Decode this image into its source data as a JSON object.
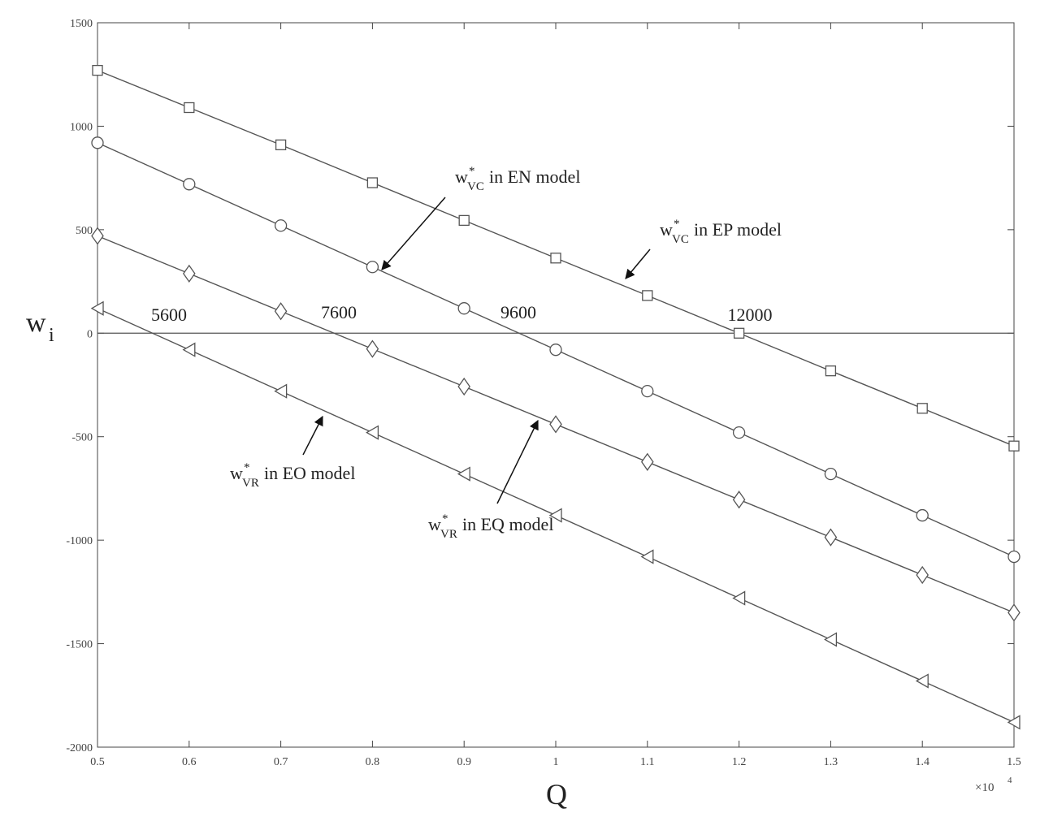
{
  "chart_data": {
    "type": "line",
    "x_label": "Q",
    "y_label": {
      "base": "w",
      "sub": "i"
    },
    "x_multiplier": {
      "base": "×10",
      "exponent": "4"
    },
    "x": [
      0.5,
      0.6,
      0.7,
      0.8,
      0.9,
      1,
      1.1,
      1.2,
      1.3,
      1.4,
      1.5
    ],
    "xlim": [
      0.5,
      1.5
    ],
    "xticks": [
      0.5,
      0.6,
      0.7,
      0.8,
      0.9,
      1,
      1.1,
      1.2,
      1.3,
      1.4,
      1.5
    ],
    "ylim": [
      -2000,
      1500
    ],
    "yticks": [
      -2000,
      -1500,
      -1000,
      -500,
      0,
      500,
      1000,
      1500
    ],
    "hline": 0,
    "series": [
      {
        "marker": "square",
        "color": "#555555",
        "values": [
          1270,
          1090,
          910,
          727,
          545,
          363,
          182,
          0,
          -182,
          -363,
          -545
        ]
      },
      {
        "marker": "circle",
        "color": "#555555",
        "values": [
          920,
          720,
          520,
          320,
          120,
          -80,
          -280,
          -480,
          -680,
          -880,
          -1080
        ]
      },
      {
        "marker": "diamond",
        "color": "#555555",
        "values": [
          470,
          288,
          106,
          -76,
          -258,
          -440,
          -622,
          -804,
          -986,
          -1168,
          -1350
        ]
      },
      {
        "marker": "triangle-left",
        "color": "#555555",
        "values": [
          120,
          -80,
          -280,
          -480,
          -680,
          -880,
          -1080,
          -1280,
          -1480,
          -1680,
          -1880
        ]
      }
    ],
    "annotations": [
      {
        "base": "w",
        "sup": "*",
        "sub": "VC",
        "text": "in EN model"
      },
      {
        "base": "w",
        "sup": "*",
        "sub": "VC",
        "text": "in EP model"
      },
      {
        "base": "w",
        "sup": "*",
        "sub": "VR",
        "text": "in EO model"
      },
      {
        "base": "w",
        "sup": "*",
        "sub": "VR",
        "text": "in EQ model"
      }
    ],
    "crossing_labels": [
      5600,
      7600,
      9600,
      12000
    ]
  }
}
